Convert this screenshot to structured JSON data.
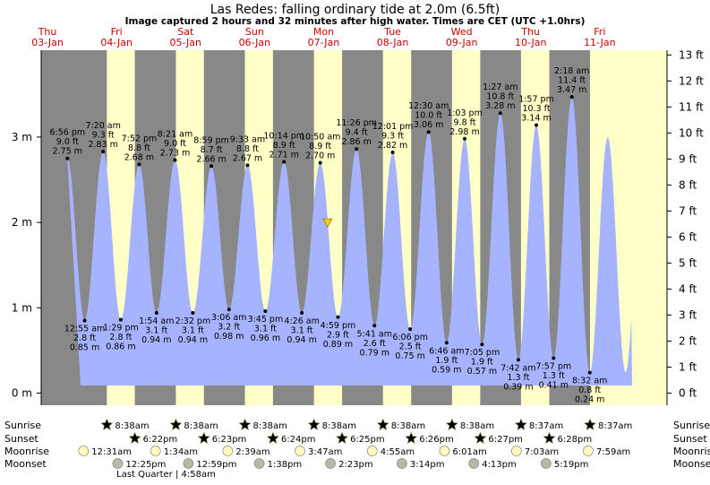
{
  "header": {
    "title": "Las Redes: falling  ordinary tide at 2.0m (6.5ft)",
    "subtitle": "Image captured 2 hours and 32 minutes after high water. Times are CET (UTC +1.0hrs)"
  },
  "days": [
    {
      "name": "Thu",
      "date": "03-Jan"
    },
    {
      "name": "Fri",
      "date": "04-Jan"
    },
    {
      "name": "Sat",
      "date": "05-Jan"
    },
    {
      "name": "Sun",
      "date": "06-Jan"
    },
    {
      "name": "Mon",
      "date": "07-Jan"
    },
    {
      "name": "Tue",
      "date": "08-Jan"
    },
    {
      "name": "Wed",
      "date": "09-Jan"
    },
    {
      "name": "Thu",
      "date": "10-Jan"
    },
    {
      "name": "Fri",
      "date": "11-Jan"
    }
  ],
  "chart_data": {
    "type": "area",
    "title": "Las Redes: falling  ordinary tide at 2.0m (6.5ft)",
    "start": "2019-01-03 00:00",
    "ylabel_left": "m",
    "ylabel_right": "ft",
    "ylim_m": [
      -0.1,
      4.0
    ],
    "yticks_m": [
      "0 m",
      "1 m",
      "2 m",
      "3 m"
    ],
    "yticks_ft": [
      "0 ft",
      "1 ft",
      "2 ft",
      "3 ft",
      "4 ft",
      "5 ft",
      "6 ft",
      "7 ft",
      "8 ft",
      "9 ft",
      "10 ft",
      "11 ft",
      "12 ft",
      "13 ft"
    ],
    "current": {
      "time": "2019-01-07 13:22",
      "height_m": 2.0
    },
    "tides": [
      {
        "type": "high",
        "day": 0,
        "time": "6:56 pm",
        "ft": "9.0 ft",
        "m": 2.75
      },
      {
        "type": "low",
        "day": 1,
        "time": "12:55 am",
        "ft": "2.8 ft",
        "m": 0.85
      },
      {
        "type": "high",
        "day": 1,
        "time": "7:20 am",
        "ft": "9.3 ft",
        "m": 2.83
      },
      {
        "type": "low",
        "day": 1,
        "time": "1:29 pm",
        "ft": "2.8 ft",
        "m": 0.86
      },
      {
        "type": "high",
        "day": 1,
        "time": "7:52 pm",
        "ft": "8.8 ft",
        "m": 2.68
      },
      {
        "type": "low",
        "day": 2,
        "time": "1:54 am",
        "ft": "3.1 ft",
        "m": 0.94
      },
      {
        "type": "high",
        "day": 2,
        "time": "8:21 am",
        "ft": "9.0 ft",
        "m": 2.73
      },
      {
        "type": "low",
        "day": 2,
        "time": "2:32 pm",
        "ft": "3.1 ft",
        "m": 0.94
      },
      {
        "type": "high",
        "day": 2,
        "time": "8:59 pm",
        "ft": "8.7 ft",
        "m": 2.66
      },
      {
        "type": "low",
        "day": 3,
        "time": "3:06 am",
        "ft": "3.2 ft",
        "m": 0.98
      },
      {
        "type": "high",
        "day": 3,
        "time": "9:33 am",
        "ft": "8.8 ft",
        "m": 2.67
      },
      {
        "type": "low",
        "day": 3,
        "time": "3:45 pm",
        "ft": "3.1 ft",
        "m": 0.96
      },
      {
        "type": "high",
        "day": 3,
        "time": "10:14 pm",
        "ft": "8.9 ft",
        "m": 2.71
      },
      {
        "type": "low",
        "day": 4,
        "time": "4:26 am",
        "ft": "3.1 ft",
        "m": 0.94
      },
      {
        "type": "high",
        "day": 4,
        "time": "10:50 am",
        "ft": "8.9 ft",
        "m": 2.7
      },
      {
        "type": "low",
        "day": 4,
        "time": "4:59 pm",
        "ft": "2.9 ft",
        "m": 0.89
      },
      {
        "type": "high",
        "day": 4,
        "time": "11:26 pm",
        "ft": "9.4 ft",
        "m": 2.86
      },
      {
        "type": "low",
        "day": 5,
        "time": "5:41 am",
        "ft": "2.6 ft",
        "m": 0.79
      },
      {
        "type": "high",
        "day": 5,
        "time": "12:01 pm",
        "ft": "9.3 ft",
        "m": 2.82
      },
      {
        "type": "low",
        "day": 5,
        "time": "6:06 pm",
        "ft": "2.5 ft",
        "m": 0.75
      },
      {
        "type": "high",
        "day": 6,
        "time": "12:30 am",
        "ft": "10.0 ft",
        "m": 3.06
      },
      {
        "type": "low",
        "day": 6,
        "time": "6:46 am",
        "ft": "1.9 ft",
        "m": 0.59
      },
      {
        "type": "high",
        "day": 6,
        "time": "1:03 pm",
        "ft": "9.8 ft",
        "m": 2.98
      },
      {
        "type": "low",
        "day": 6,
        "time": "7:05 pm",
        "ft": "1.9 ft",
        "m": 0.57
      },
      {
        "type": "high",
        "day": 7,
        "time": "1:27 am",
        "ft": "10.8 ft",
        "m": 3.28
      },
      {
        "type": "low",
        "day": 7,
        "time": "7:42 am",
        "ft": "1.3 ft",
        "m": 0.39
      },
      {
        "type": "high",
        "day": 7,
        "time": "1:57 pm",
        "ft": "10.3 ft",
        "m": 3.14
      },
      {
        "type": "low",
        "day": 7,
        "time": "7:57 pm",
        "ft": "1.3 ft",
        "m": 0.41
      },
      {
        "type": "high",
        "day": 8,
        "time": "2:18 am",
        "ft": "11.4 ft",
        "m": 3.47
      },
      {
        "type": "low",
        "day": 8,
        "time": "8:32 am",
        "ft": "0.8 ft",
        "m": 0.24
      }
    ],
    "sunrise": [
      {
        "day": 1,
        "time": "8:38am"
      },
      {
        "day": 2,
        "time": "8:38am"
      },
      {
        "day": 3,
        "time": "8:38am"
      },
      {
        "day": 4,
        "time": "8:38am"
      },
      {
        "day": 5,
        "time": "8:38am"
      },
      {
        "day": 6,
        "time": "8:38am"
      },
      {
        "day": 7,
        "time": "8:37am"
      },
      {
        "day": 8,
        "time": "8:37am"
      }
    ],
    "sunset": [
      {
        "day": 1,
        "time": "6:22pm"
      },
      {
        "day": 2,
        "time": "6:23pm"
      },
      {
        "day": 3,
        "time": "6:24pm"
      },
      {
        "day": 4,
        "time": "6:25pm"
      },
      {
        "day": 5,
        "time": "6:26pm"
      },
      {
        "day": 6,
        "time": "6:27pm"
      },
      {
        "day": 7,
        "time": "6:28pm"
      }
    ],
    "moonrise": [
      {
        "day": 1,
        "time": "12:31am"
      },
      {
        "day": 2,
        "time": "1:34am"
      },
      {
        "day": 3,
        "time": "2:39am"
      },
      {
        "day": 4,
        "time": "3:47am"
      },
      {
        "day": 5,
        "time": "4:55am"
      },
      {
        "day": 6,
        "time": "6:01am"
      },
      {
        "day": 7,
        "time": "7:03am"
      },
      {
        "day": 8,
        "time": "7:59am"
      }
    ],
    "moonset": [
      {
        "day": 1,
        "time": "12:25pm"
      },
      {
        "day": 2,
        "time": "12:59pm"
      },
      {
        "day": 3,
        "time": "1:38pm"
      },
      {
        "day": 4,
        "time": "2:23pm"
      },
      {
        "day": 5,
        "time": "3:14pm"
      },
      {
        "day": 6,
        "time": "4:13pm"
      },
      {
        "day": 7,
        "time": "5:19pm"
      }
    ],
    "moon_phase": "Last Quarter | 4:58am"
  },
  "labels": {
    "sunrise": "Sunrise",
    "sunset": "Sunset",
    "moonrise": "Moonrise",
    "moonset": "Moonset"
  },
  "colors": {
    "night": "#888888",
    "day": "#ffffc8",
    "water": "#a6b4ff",
    "day_header": "#cc0000",
    "sunrise_star": "#c8b040",
    "sunset_star": "#e05020",
    "moonrise": "#ffffc0",
    "moonset": "#b8b8a8"
  }
}
